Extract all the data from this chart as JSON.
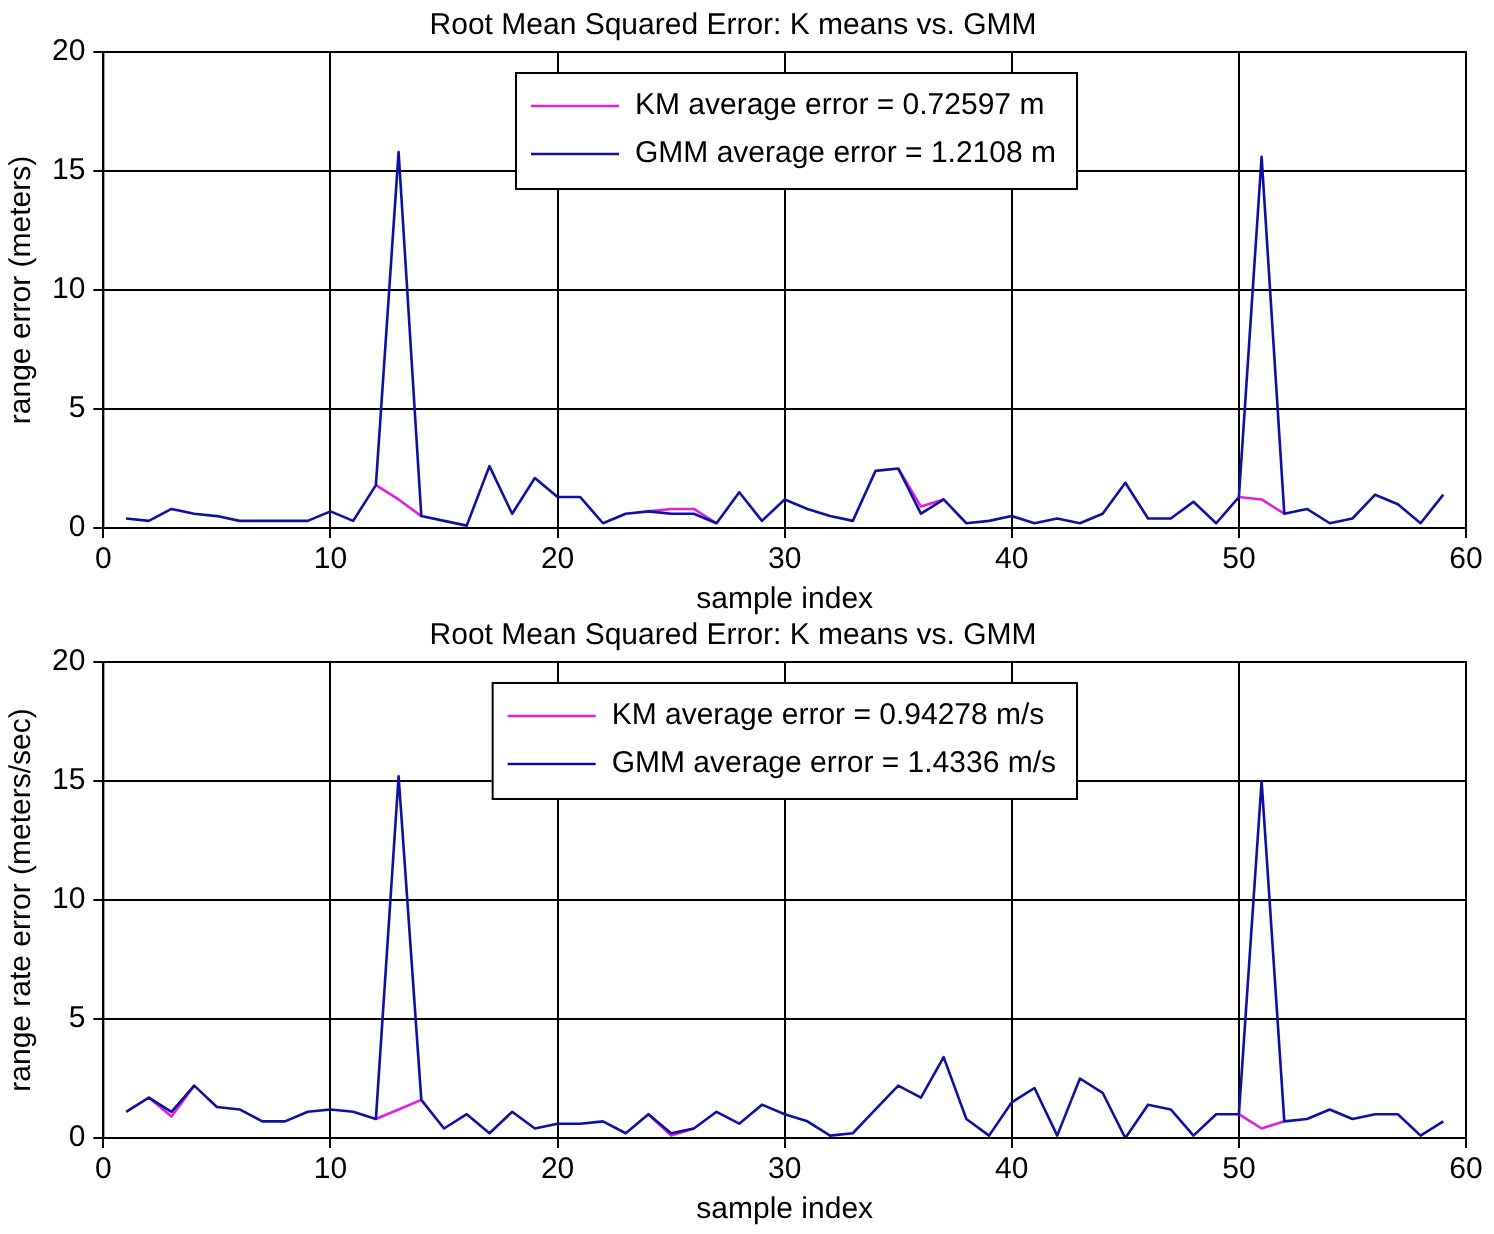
{
  "chart_data": [
    {
      "type": "line",
      "title": "Root Mean Squared Error: K means vs. GMM",
      "xlabel": "sample index",
      "ylabel": "range error (meters)",
      "x": [
        1,
        2,
        3,
        4,
        5,
        6,
        7,
        8,
        9,
        10,
        11,
        12,
        13,
        14,
        15,
        16,
        17,
        18,
        19,
        20,
        21,
        22,
        23,
        24,
        25,
        26,
        27,
        28,
        29,
        30,
        31,
        32,
        33,
        34,
        35,
        36,
        37,
        38,
        39,
        40,
        41,
        42,
        43,
        44,
        45,
        46,
        47,
        48,
        49,
        50,
        51,
        52,
        53,
        54,
        55,
        56,
        57,
        58,
        59
      ],
      "series": [
        {
          "name": "KM average error = 0.72597 m",
          "color": "#e020e0",
          "values": [
            null,
            null,
            null,
            null,
            null,
            null,
            null,
            null,
            null,
            null,
            null,
            1.8,
            1.2,
            0.5,
            null,
            null,
            null,
            null,
            null,
            null,
            null,
            null,
            null,
            0.7,
            0.8,
            0.8,
            0.2,
            null,
            null,
            null,
            null,
            null,
            null,
            null,
            2.5,
            0.9,
            1.2,
            null,
            null,
            null,
            null,
            null,
            null,
            null,
            null,
            null,
            null,
            null,
            null,
            1.3,
            1.2,
            0.6,
            null,
            null,
            null,
            null,
            null,
            null,
            null
          ]
        },
        {
          "name": "GMM average error = 1.2108 m",
          "color": "#1010a0",
          "values": [
            0.4,
            0.3,
            0.8,
            0.6,
            0.5,
            0.3,
            0.3,
            0.3,
            0.3,
            0.7,
            0.3,
            1.8,
            15.8,
            0.5,
            0.3,
            0.1,
            2.6,
            0.6,
            2.1,
            1.3,
            1.3,
            0.2,
            0.6,
            0.7,
            0.6,
            0.6,
            0.2,
            1.5,
            0.3,
            1.2,
            0.8,
            0.5,
            0.3,
            2.4,
            2.5,
            0.6,
            1.2,
            0.2,
            0.3,
            0.5,
            0.2,
            0.4,
            0.2,
            0.6,
            1.9,
            0.4,
            0.4,
            1.1,
            0.2,
            1.3,
            15.6,
            0.6,
            0.8,
            0.2,
            0.4,
            1.4,
            1.0,
            0.2,
            1.4
          ]
        }
      ],
      "xlim": [
        0,
        60
      ],
      "xticks": [
        0,
        10,
        20,
        30,
        40,
        50,
        60
      ],
      "ylim": [
        0,
        20
      ],
      "yticks": [
        0,
        5,
        10,
        15,
        20
      ],
      "grid": true,
      "legend": "top right",
      "line_style": "solid",
      "marker": "none"
    },
    {
      "type": "line",
      "title": "Root Mean Squared Error: K means vs. GMM",
      "xlabel": "sample index",
      "ylabel": "range rate error (meters/sec)",
      "x": [
        1,
        2,
        3,
        4,
        5,
        6,
        7,
        8,
        9,
        10,
        11,
        12,
        13,
        14,
        15,
        16,
        17,
        18,
        19,
        20,
        21,
        22,
        23,
        24,
        25,
        26,
        27,
        28,
        29,
        30,
        31,
        32,
        33,
        34,
        35,
        36,
        37,
        38,
        39,
        40,
        41,
        42,
        43,
        44,
        45,
        46,
        47,
        48,
        49,
        50,
        51,
        52,
        53,
        54,
        55,
        56,
        57,
        58,
        59
      ],
      "series": [
        {
          "name": "KM average error = 0.94278 m/s",
          "color": "#e020e0",
          "values": [
            null,
            1.7,
            0.9,
            2.2,
            null,
            null,
            null,
            null,
            null,
            null,
            null,
            0.8,
            1.2,
            1.6,
            null,
            null,
            null,
            null,
            null,
            null,
            null,
            null,
            null,
            1.0,
            0.1,
            0.4,
            null,
            null,
            null,
            null,
            null,
            null,
            null,
            null,
            null,
            null,
            null,
            null,
            null,
            null,
            null,
            null,
            null,
            null,
            null,
            null,
            null,
            null,
            null,
            1.0,
            0.4,
            0.7,
            null,
            null,
            null,
            null,
            null,
            null,
            null
          ]
        },
        {
          "name": "GMM average error = 1.4336 m/s",
          "color": "#1010a0",
          "values": [
            1.1,
            1.7,
            1.1,
            2.2,
            1.3,
            1.2,
            0.7,
            0.7,
            1.1,
            1.2,
            1.1,
            0.8,
            15.2,
            1.6,
            0.4,
            1.0,
            0.2,
            1.1,
            0.4,
            0.6,
            0.6,
            0.7,
            0.2,
            1.0,
            0.2,
            0.4,
            1.1,
            0.6,
            1.4,
            1.0,
            0.7,
            0.1,
            0.2,
            1.2,
            2.2,
            1.7,
            3.4,
            0.8,
            0.1,
            1.5,
            2.1,
            0.1,
            2.5,
            1.9,
            0.0,
            1.4,
            1.2,
            0.1,
            1.0,
            1.0,
            15.0,
            0.7,
            0.8,
            1.2,
            0.8,
            1.0,
            1.0,
            0.1,
            0.7
          ]
        }
      ],
      "xlim": [
        0,
        60
      ],
      "xticks": [
        0,
        10,
        20,
        30,
        40,
        50,
        60
      ],
      "ylim": [
        0,
        20
      ],
      "yticks": [
        0,
        5,
        10,
        15,
        20
      ],
      "grid": true,
      "legend": "top right",
      "line_style": "solid",
      "marker": "none"
    }
  ]
}
